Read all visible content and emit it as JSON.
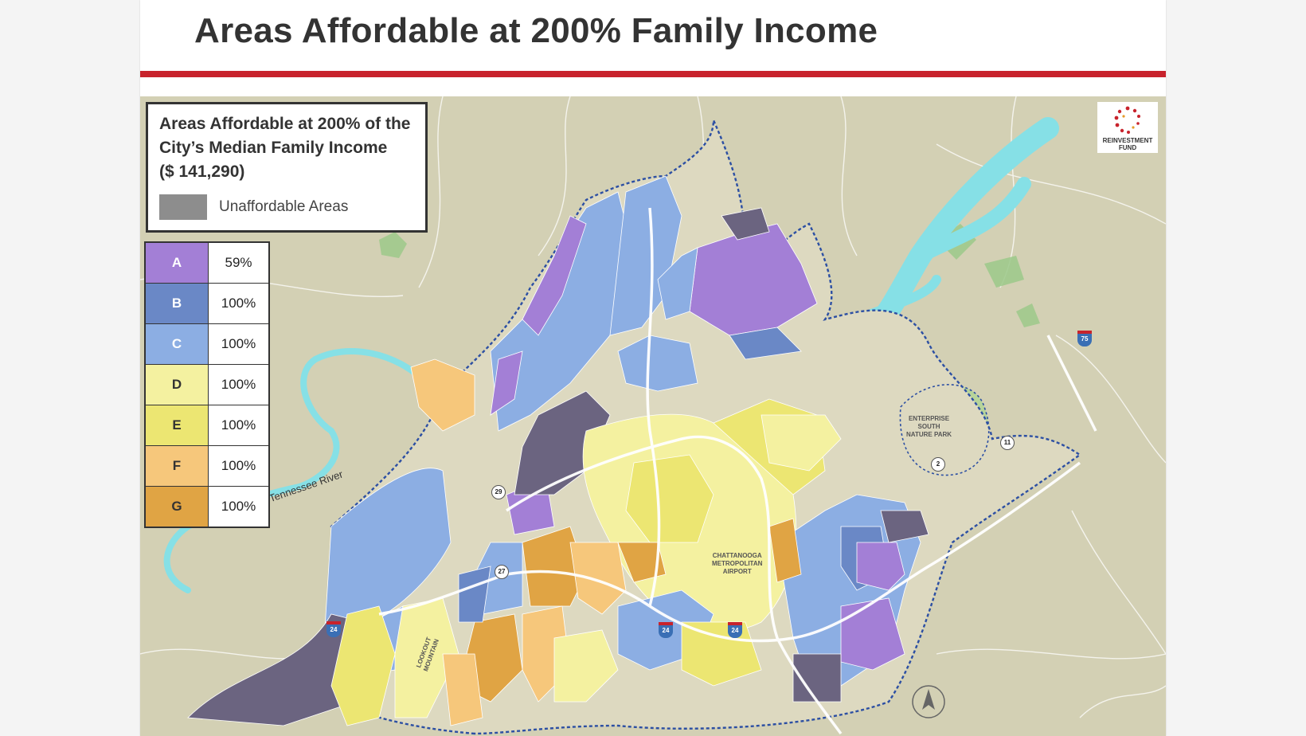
{
  "slide": {
    "title": "Areas Affordable at 200% Family Income"
  },
  "legend": {
    "heading_line1": "Areas Affordable at 200% of the",
    "heading_line2": "City’s Median Family Income",
    "heading_line3": "($ 141,290)",
    "unaffordable_label": "Unaffordable Areas",
    "grades": [
      {
        "grade": "A",
        "pct": "59%",
        "color": "#a37fd6"
      },
      {
        "grade": "B",
        "pct": "100%",
        "color": "#6a88c6"
      },
      {
        "grade": "C",
        "pct": "100%",
        "color": "#8caee3"
      },
      {
        "grade": "D",
        "pct": "100%",
        "color": "#f4f1a0"
      },
      {
        "grade": "E",
        "pct": "100%",
        "color": "#ece672"
      },
      {
        "grade": "F",
        "pct": "100%",
        "color": "#f6c77b"
      },
      {
        "grade": "G",
        "pct": "100%",
        "color": "#e0a444"
      }
    ],
    "unaffordable_color": "#8d8d8d"
  },
  "logo": {
    "line1": "REINVESTMENT",
    "line2": "FUND"
  },
  "map_labels": {
    "river": "Tennessee River",
    "park_line1": "ENTERPRISE",
    "park_line2": "SOUTH",
    "park_line3": "NATURE PARK",
    "airport_line1": "CHATTANOOGA",
    "airport_line2": "METROPOLITAN",
    "airport_line3": "AIRPORT",
    "mountain_line1": "LOOKOUT",
    "mountain_line2": "MOUNTAIN"
  },
  "route_shields": {
    "r29": "29",
    "r27": "27",
    "r2": "2",
    "r11": "11",
    "i24a": "24",
    "i24b": "24",
    "i24c": "24",
    "i75": "75"
  }
}
